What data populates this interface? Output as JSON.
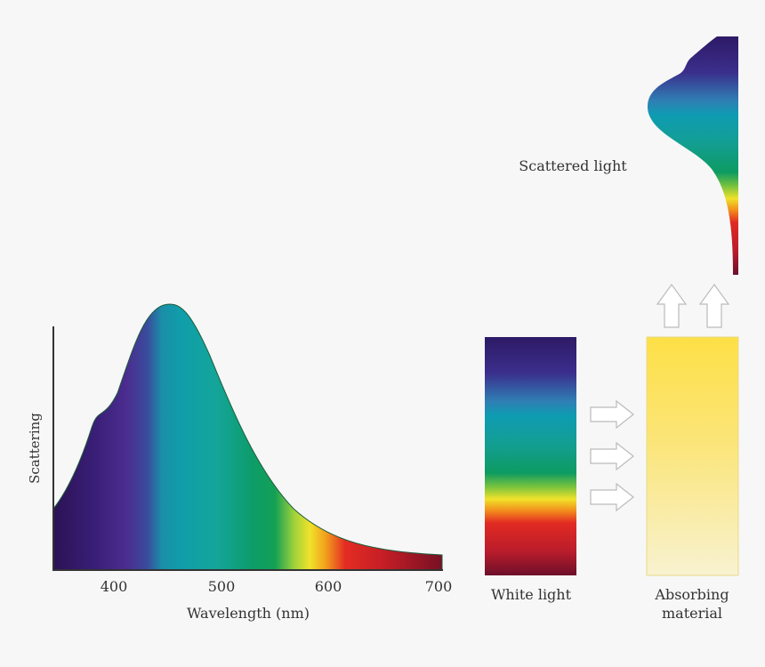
{
  "chart": {
    "ylabel": "Scattering",
    "xlabel": "Wavelength (nm)",
    "ticks": [
      "400",
      "500",
      "600",
      "700"
    ]
  },
  "labels": {
    "scattered": "Scattered light",
    "white": "White light",
    "absorbing_1": "Absorbing",
    "absorbing_2": "material"
  },
  "chart_data": {
    "type": "area",
    "title": "",
    "xlabel": "Wavelength (nm)",
    "ylabel": "Scattering",
    "xlim": [
      340,
      700
    ],
    "x": [
      340,
      360,
      380,
      385,
      400,
      420,
      440,
      450,
      460,
      480,
      500,
      520,
      540,
      560,
      580,
      600,
      620,
      640,
      660,
      680,
      700
    ],
    "y": [
      0.25,
      0.45,
      0.62,
      0.64,
      0.72,
      0.92,
      1.0,
      1.0,
      0.99,
      0.88,
      0.7,
      0.52,
      0.38,
      0.28,
      0.21,
      0.16,
      0.12,
      0.095,
      0.08,
      0.07,
      0.065
    ],
    "grid": false
  },
  "colors": {
    "background": "#f7f7f7",
    "absorber_top": "#fde046",
    "absorber_bottom": "#f8f2d0",
    "arrow_stroke": "#bbbbbb"
  }
}
